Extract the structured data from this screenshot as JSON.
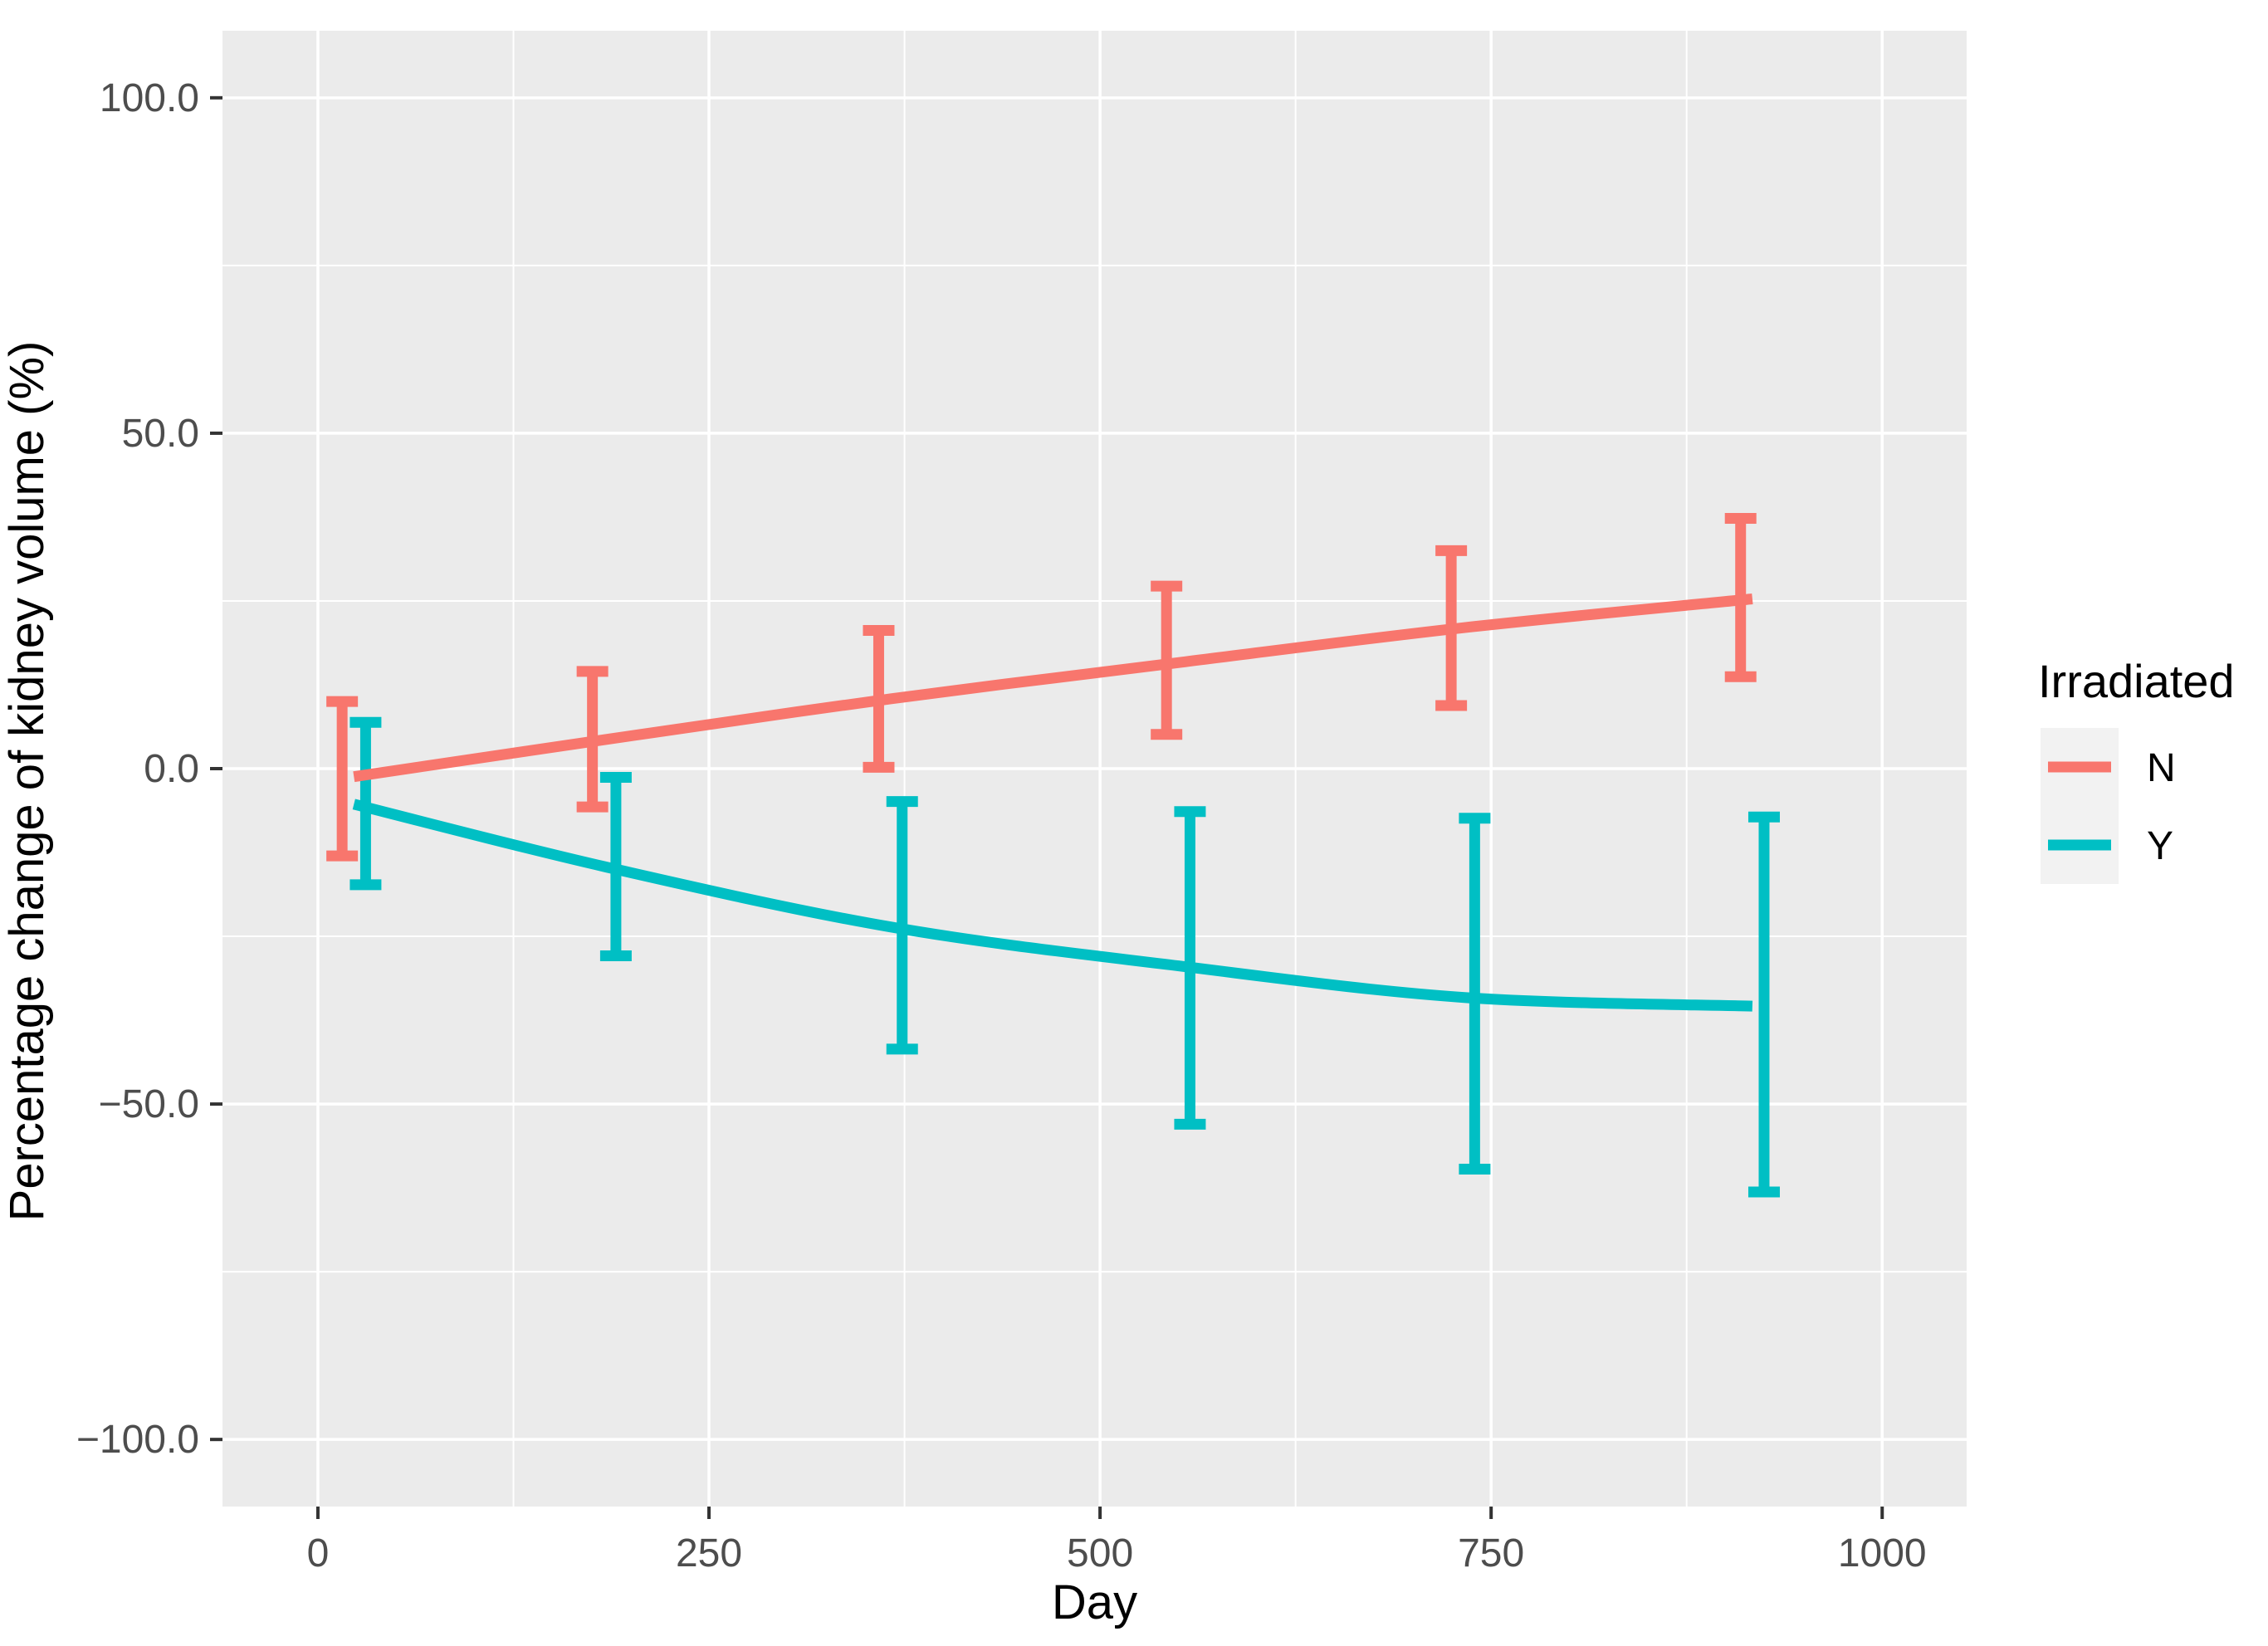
{
  "chart_data": {
    "type": "line",
    "title": "",
    "xlabel": "Day",
    "ylabel": "Percentage change of kidney volume (%)",
    "x_ticks": [
      {
        "value": 0,
        "label": "0"
      },
      {
        "value": 250,
        "label": "250"
      },
      {
        "value": 500,
        "label": "500"
      },
      {
        "value": 750,
        "label": "750"
      },
      {
        "value": 1000,
        "label": "1000"
      }
    ],
    "y_ticks": [
      {
        "value": 100,
        "label": "100.0"
      },
      {
        "value": 50,
        "label": "50.0"
      },
      {
        "value": 0,
        "label": "0.0"
      },
      {
        "value": -50,
        "label": "−50.0"
      },
      {
        "value": -100,
        "label": "−100.0"
      }
    ],
    "x_minor_ticks": [
      125,
      375,
      625,
      875
    ],
    "y_minor_ticks": [
      75,
      25,
      -25,
      -75
    ],
    "xlim": [
      -61,
      1054
    ],
    "ylim": [
      -110,
      110
    ],
    "grid": {
      "major": true,
      "minor": true
    },
    "legend": {
      "title": "Irradiated",
      "position": "right",
      "entries": [
        {
          "label": "N",
          "color": "#F8766D"
        },
        {
          "label": "Y",
          "color": "#00BFC4"
        }
      ]
    },
    "x_days": [
      23,
      183,
      366,
      550,
      732,
      917
    ],
    "series": [
      {
        "name": "N",
        "color": "#F8766D",
        "dodge_days": -7.5,
        "means": [
          -1.2,
          4.3,
          10.4,
          15.8,
          21.0,
          25.3
        ],
        "ci_low": [
          -13.0,
          -5.7,
          0.2,
          5.1,
          9.4,
          13.7
        ],
        "ci_high": [
          10.0,
          14.5,
          20.6,
          27.2,
          32.5,
          37.3
        ]
      },
      {
        "name": "Y",
        "color": "#00BFC4",
        "dodge_days": 7.5,
        "means": [
          -5.3,
          -14.6,
          -23.6,
          -29.4,
          -34.1,
          -35.4
        ],
        "ci_low": [
          -17.3,
          -27.9,
          -41.8,
          -53.0,
          -59.7,
          -63.1
        ],
        "ci_high": [
          6.9,
          -1.3,
          -4.9,
          -6.4,
          -7.4,
          -7.2
        ]
      }
    ]
  },
  "style": {
    "panel_fill": "#EBEBEB",
    "grid_color": "#FFFFFF",
    "tick_color": "#333333",
    "legend_key_fill": "#F2F2F2"
  }
}
